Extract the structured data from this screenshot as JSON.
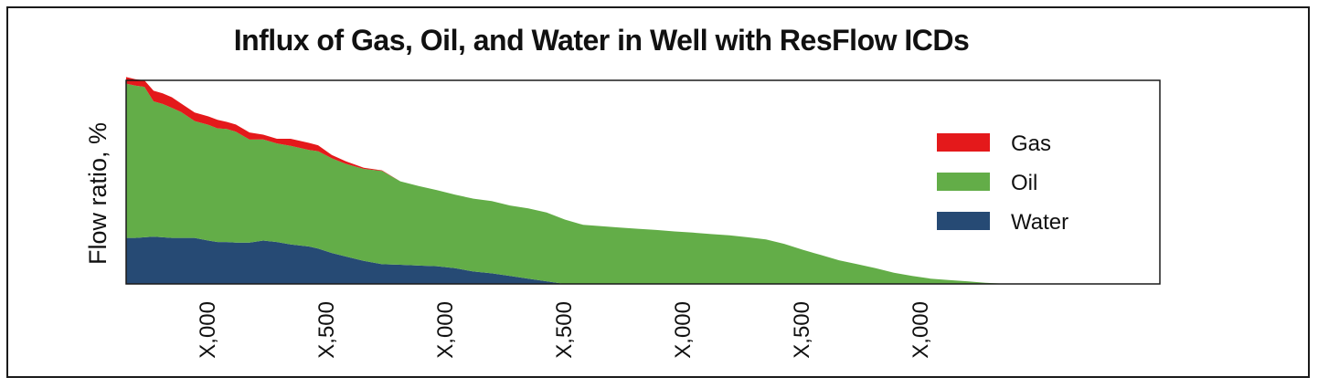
{
  "chart_data": {
    "type": "area",
    "stacked": true,
    "title": "Influx of Gas, Oil, and Water in Well with ResFlow ICDs",
    "ylabel": "Flow ratio, %",
    "xlabel": "",
    "xlim": [
      0,
      1131
    ],
    "ylim": [
      0,
      100
    ],
    "x_ticks": [
      {
        "x": 88,
        "label": "X,000"
      },
      {
        "x": 218,
        "label": "X,500"
      },
      {
        "x": 348,
        "label": "X,000"
      },
      {
        "x": 478,
        "label": "X,500"
      },
      {
        "x": 608,
        "label": "X,000"
      },
      {
        "x": 738,
        "label": "X,500"
      },
      {
        "x": 868,
        "label": "X,000"
      }
    ],
    "legend_position": "right",
    "x": [
      0,
      10,
      20,
      30,
      40,
      50,
      60,
      75,
      90,
      100,
      110,
      120,
      135,
      150,
      165,
      180,
      200,
      210,
      225,
      240,
      260,
      280,
      300,
      320,
      340,
      360,
      380,
      400,
      420,
      440,
      460,
      480,
      500,
      520,
      540,
      560,
      580,
      600,
      620,
      640,
      660,
      680,
      700,
      720,
      740,
      760,
      780,
      800,
      820,
      840,
      860,
      880,
      900,
      920,
      940,
      950,
      966
    ],
    "series": [
      {
        "name": "Water",
        "color": "#264a74",
        "values": [
          22.6,
          22.6,
          22.9,
          23.2,
          22.9,
          22.6,
          22.6,
          22.6,
          21.3,
          20.6,
          20.6,
          20.3,
          20.3,
          21.3,
          20.6,
          19.4,
          18.4,
          17.4,
          15.2,
          13.5,
          11.3,
          9.7,
          9.4,
          9.0,
          8.7,
          7.7,
          6.1,
          5.2,
          3.9,
          2.6,
          1.3,
          0,
          0,
          0,
          0,
          0,
          0,
          0,
          0,
          0,
          0,
          0,
          0,
          0,
          0,
          0,
          0,
          0,
          0,
          0,
          0,
          0,
          0,
          0,
          0,
          0,
          0
        ]
      },
      {
        "name": "Oil",
        "color": "#63ad48",
        "values": [
          75.8,
          74.8,
          73.9,
          66.5,
          65.5,
          63.9,
          61.9,
          57.4,
          56.8,
          55.8,
          55.5,
          54.5,
          50.6,
          49.7,
          48.4,
          48.4,
          47.4,
          47.8,
          46.5,
          45.5,
          45.2,
          45.8,
          41.0,
          39.1,
          37.4,
          36.1,
          35.8,
          35.5,
          34.6,
          34.5,
          33.8,
          31.6,
          29.0,
          28.4,
          27.7,
          27.1,
          26.5,
          25.8,
          25.2,
          24.5,
          23.9,
          22.9,
          21.9,
          19.7,
          16.8,
          14.2,
          11.6,
          9.7,
          7.7,
          5.5,
          3.9,
          2.6,
          1.9,
          1.3,
          0.6,
          0.3,
          0
        ]
      },
      {
        "name": "Gas",
        "color": "#e4191b",
        "values": [
          3.2,
          3.2,
          3.2,
          5.2,
          5.2,
          5.2,
          4.2,
          4.2,
          4.2,
          4.2,
          3.5,
          3.5,
          3.5,
          2.3,
          2.3,
          3.5,
          3.5,
          2.9,
          1.6,
          1.3,
          0.6,
          0.3,
          0,
          0,
          0,
          0,
          0,
          0,
          0,
          0,
          0,
          0,
          0,
          0,
          0,
          0,
          0,
          0,
          0,
          0,
          0,
          0,
          0,
          0,
          0,
          0,
          0,
          0,
          0,
          0,
          0,
          0,
          0,
          0,
          0,
          0,
          0
        ]
      }
    ]
  }
}
